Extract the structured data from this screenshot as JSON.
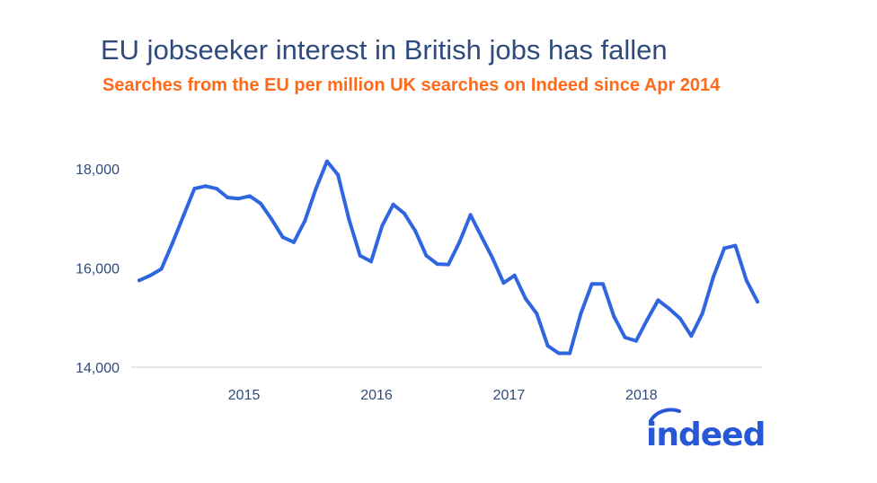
{
  "title": "EU jobseeker interest in British jobs has fallen",
  "subtitle": "Searches from the EU per million UK searches on Indeed since Apr 2014",
  "colors": {
    "title": "#2f4b7c",
    "subtitle": "#ff6a1a",
    "line": "#2f66e0",
    "axis": "#cccccc",
    "logo": "#2557d6"
  },
  "logo": {
    "text": "indeed",
    "icon": "indeed-logo"
  },
  "chart_data": {
    "type": "line",
    "title": "EU jobseeker interest in British jobs has fallen",
    "subtitle": "Searches from the EU per million UK searches on Indeed since Apr 2014",
    "xlabel": "",
    "ylabel": "",
    "ylim": [
      14000,
      18500
    ],
    "xlim": [
      "2014-04",
      "2018-12"
    ],
    "y_ticks": [
      {
        "value": 14000,
        "label": "14,000"
      },
      {
        "value": 16000,
        "label": "16,000"
      },
      {
        "value": 18000,
        "label": "18,000"
      }
    ],
    "x_ticks": [
      {
        "value": "2015-01",
        "label": "2015"
      },
      {
        "value": "2016-01",
        "label": "2016"
      },
      {
        "value": "2017-01",
        "label": "2017"
      },
      {
        "value": "2018-01",
        "label": "2018"
      }
    ],
    "grid": false,
    "legend": "none",
    "series": [
      {
        "x": [
          "2014-04",
          "2014-05",
          "2014-06",
          "2014-07",
          "2014-08",
          "2014-09",
          "2014-10",
          "2014-11",
          "2014-12",
          "2015-01",
          "2015-02",
          "2015-03",
          "2015-04",
          "2015-05",
          "2015-06",
          "2015-07",
          "2015-08",
          "2015-09",
          "2015-10",
          "2015-11",
          "2015-12",
          "2016-01",
          "2016-02",
          "2016-03",
          "2016-04",
          "2016-05",
          "2016-06",
          "2016-07",
          "2016-08",
          "2016-09",
          "2016-10",
          "2016-11",
          "2016-12",
          "2017-01",
          "2017-02",
          "2017-03",
          "2017-04",
          "2017-05",
          "2017-06",
          "2017-07",
          "2017-08",
          "2017-09",
          "2017-10",
          "2017-11",
          "2017-12",
          "2018-01",
          "2018-02",
          "2018-03",
          "2018-04",
          "2018-05",
          "2018-06",
          "2018-07",
          "2018-08",
          "2018-09",
          "2018-10",
          "2018-11",
          "2018-12"
        ],
        "values": [
          15750,
          15850,
          15980,
          16500,
          17050,
          17600,
          17650,
          17600,
          17420,
          17400,
          17450,
          17300,
          16980,
          16620,
          16520,
          16950,
          17600,
          18150,
          17880,
          16980,
          16250,
          16130,
          16850,
          17280,
          17100,
          16750,
          16250,
          16080,
          16070,
          16520,
          17070,
          16630,
          16200,
          15700,
          15850,
          15380,
          15080,
          14430,
          14280,
          14280,
          15080,
          15680,
          15680,
          15020,
          14600,
          14530,
          14950,
          15350,
          15180,
          14980,
          14630,
          15080,
          15820,
          16400,
          16450,
          15750,
          15320
        ]
      }
    ]
  }
}
